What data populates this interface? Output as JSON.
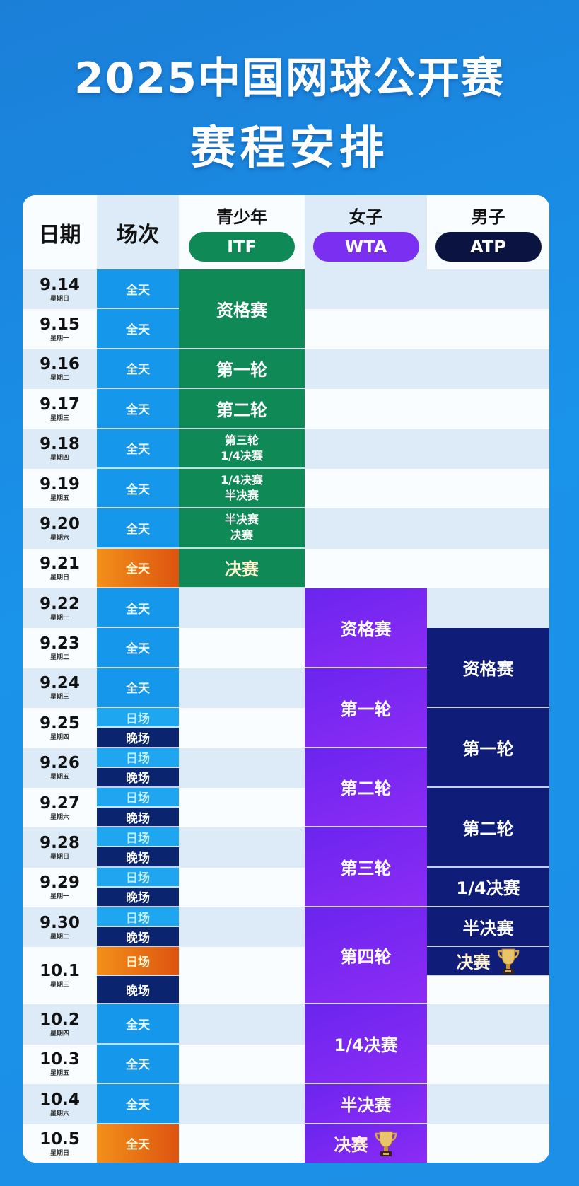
{
  "title": {
    "line1": "2025中国网球公开赛",
    "line2": "赛程安排"
  },
  "header": {
    "date": "日期",
    "session": "场次",
    "itf": {
      "label": "青少年",
      "badge": "ITF",
      "color": "#0f8a57"
    },
    "wta": {
      "label": "女子",
      "badge": "WTA",
      "color": "#7b2ff0"
    },
    "atp": {
      "label": "男子",
      "badge": "ATP",
      "color": "#0b1440"
    }
  },
  "colors": {
    "orange": "#e86f14",
    "day": "#1ea6f0",
    "night": "#0b2470",
    "all_day": "#1597ec"
  },
  "dates": [
    {
      "date": "9.14",
      "weekday": "星期日",
      "sessions": [
        "全天"
      ]
    },
    {
      "date": "9.15",
      "weekday": "星期一",
      "sessions": [
        "全天"
      ]
    },
    {
      "date": "9.16",
      "weekday": "星期二",
      "sessions": [
        "全天"
      ]
    },
    {
      "date": "9.17",
      "weekday": "星期三",
      "sessions": [
        "全天"
      ]
    },
    {
      "date": "9.18",
      "weekday": "星期四",
      "sessions": [
        "全天"
      ]
    },
    {
      "date": "9.19",
      "weekday": "星期五",
      "sessions": [
        "全天"
      ]
    },
    {
      "date": "9.20",
      "weekday": "星期六",
      "sessions": [
        "全天"
      ]
    },
    {
      "date": "9.21",
      "weekday": "星期日",
      "sessions": [
        "全天"
      ],
      "highlight": true
    },
    {
      "date": "9.22",
      "weekday": "星期一",
      "sessions": [
        "全天"
      ]
    },
    {
      "date": "9.23",
      "weekday": "星期二",
      "sessions": [
        "全天"
      ]
    },
    {
      "date": "9.24",
      "weekday": "星期三",
      "sessions": [
        "全天"
      ]
    },
    {
      "date": "9.25",
      "weekday": "星期四",
      "sessions": [
        "日场",
        "晚场"
      ]
    },
    {
      "date": "9.26",
      "weekday": "星期五",
      "sessions": [
        "日场",
        "晚场"
      ]
    },
    {
      "date": "9.27",
      "weekday": "星期六",
      "sessions": [
        "日场",
        "晚场"
      ]
    },
    {
      "date": "9.28",
      "weekday": "星期日",
      "sessions": [
        "日场",
        "晚场"
      ]
    },
    {
      "date": "9.29",
      "weekday": "星期一",
      "sessions": [
        "日场",
        "晚场"
      ]
    },
    {
      "date": "9.30",
      "weekday": "星期二",
      "sessions": [
        "日场",
        "晚场"
      ]
    },
    {
      "date": "10.1",
      "weekday": "星期三",
      "sessions": [
        "日场",
        "晚场"
      ],
      "highlight": true
    },
    {
      "date": "10.2",
      "weekday": "星期四",
      "sessions": [
        "全天"
      ]
    },
    {
      "date": "10.3",
      "weekday": "星期五",
      "sessions": [
        "全天"
      ]
    },
    {
      "date": "10.4",
      "weekday": "星期六",
      "sessions": [
        "全天"
      ]
    },
    {
      "date": "10.5",
      "weekday": "星期日",
      "sessions": [
        "全天"
      ],
      "highlight": true
    }
  ],
  "events": {
    "itf": [
      {
        "from": "9.14",
        "to": "9.15",
        "label": [
          "资格赛"
        ]
      },
      {
        "from": "9.16",
        "to": "9.16",
        "label": [
          "第一轮"
        ]
      },
      {
        "from": "9.17",
        "to": "9.17",
        "label": [
          "第二轮"
        ]
      },
      {
        "from": "9.18",
        "to": "9.18",
        "label": [
          "第三轮",
          "1/4决赛"
        ]
      },
      {
        "from": "9.19",
        "to": "9.19",
        "label": [
          "1/4决赛",
          "半决赛"
        ]
      },
      {
        "from": "9.20",
        "to": "9.20",
        "label": [
          "半决赛",
          "决赛"
        ]
      },
      {
        "from": "9.21",
        "to": "9.21",
        "label": [
          "决赛"
        ],
        "final": true
      }
    ],
    "wta": [
      {
        "from": "9.22",
        "to": "9.23",
        "label": [
          "资格赛"
        ]
      },
      {
        "from": "9.24",
        "to": "9.25",
        "label": [
          "第一轮"
        ]
      },
      {
        "from": "9.26",
        "to": "9.27",
        "label": [
          "第二轮"
        ]
      },
      {
        "from": "9.28",
        "to": "9.29",
        "label": [
          "第三轮"
        ]
      },
      {
        "from": "9.30",
        "to": "10.1",
        "label": [
          "第四轮"
        ]
      },
      {
        "from": "10.2",
        "to": "10.3",
        "label": [
          "1/4决赛"
        ]
      },
      {
        "from": "10.4",
        "to": "10.4",
        "label": [
          "半决赛"
        ]
      },
      {
        "from": "10.5",
        "to": "10.5",
        "label": [
          "决赛"
        ],
        "final": true,
        "trophy": true
      }
    ],
    "atp": [
      {
        "from": "9.23",
        "to": "9.24",
        "label": [
          "资格赛"
        ]
      },
      {
        "from": "9.25",
        "to": "9.26",
        "label": [
          "第一轮"
        ]
      },
      {
        "from": "9.27",
        "to": "9.28",
        "label": [
          "第二轮"
        ]
      },
      {
        "from": "9.29",
        "to": "9.29",
        "label": [
          "1/4决赛"
        ]
      },
      {
        "from": "9.30",
        "to": "9.30",
        "label": [
          "半决赛"
        ]
      },
      {
        "from": "10.1",
        "to": "10.1",
        "session": "日场",
        "label": [
          "决赛"
        ],
        "final": true,
        "trophy": true
      }
    ]
  }
}
